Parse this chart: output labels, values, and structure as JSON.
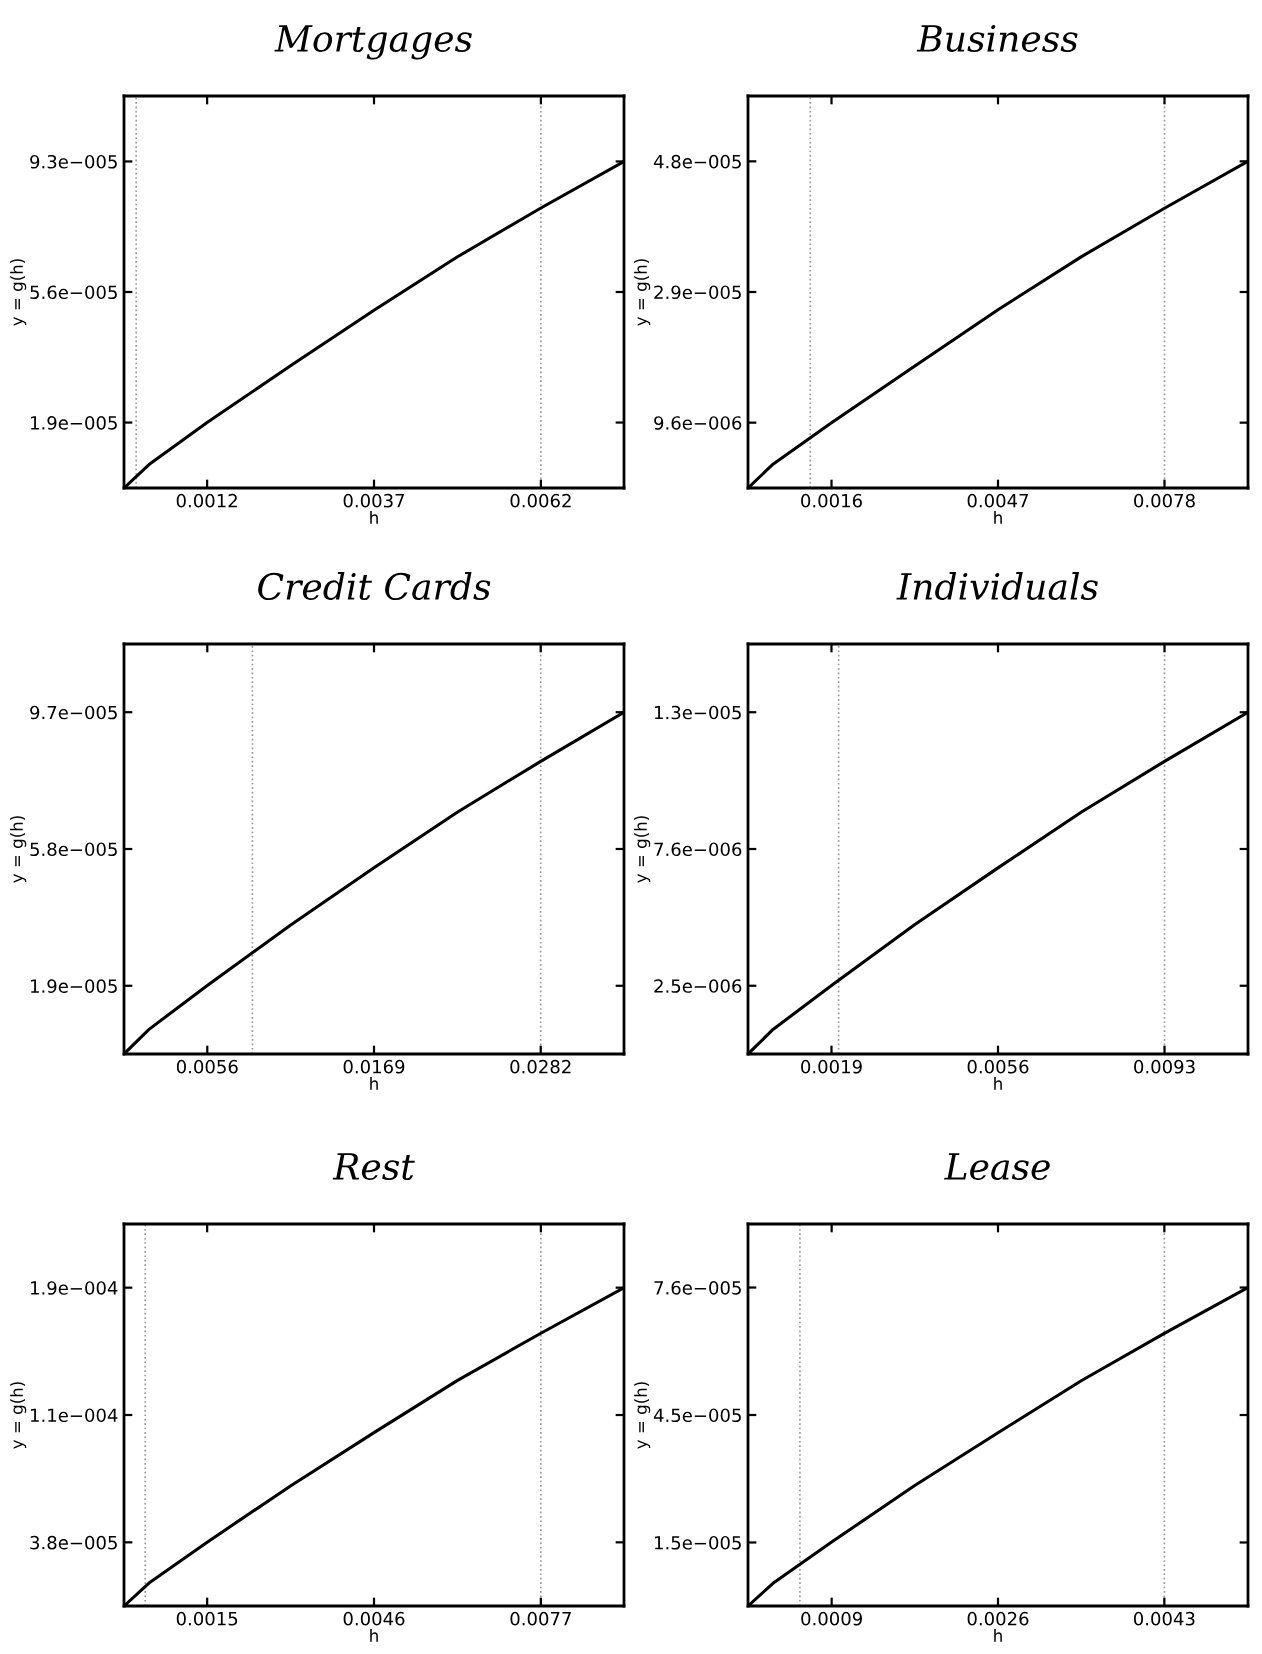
{
  "chart_data": [
    {
      "type": "line",
      "title": "Mortgages",
      "xlabel": "h",
      "ylabel": "y = g(h)",
      "x": [
        0,
        0.00037,
        0.00123,
        0.00247,
        0.0037,
        0.00493,
        0.00617,
        0.0074
      ],
      "series": [
        {
          "color": "#000000",
          "values": [
            0,
            6.7e-06,
            1.87e-05,
            3.5e-05,
            5.08e-05,
            6.6e-05,
            8e-05,
            9.33e-05
          ]
        }
      ],
      "xlim": [
        0,
        0.0074
      ],
      "ylim": [
        0,
        0.000112
      ],
      "xticks": [
        {
          "value": 0.00123,
          "label": "0.0012"
        },
        {
          "value": 0.0037,
          "label": "0.0037"
        },
        {
          "value": 0.00617,
          "label": "0.0062"
        }
      ],
      "yticks": [
        {
          "value": 1.87e-05,
          "label": "1.9e−005"
        },
        {
          "value": 5.6e-05,
          "label": "5.6e−005"
        },
        {
          "value": 9.33e-05,
          "label": "9.3e−005"
        }
      ],
      "ref_lines": [
        {
          "axis": "x",
          "value": 0.00018,
          "color": "#999999",
          "line_style": "dotted"
        },
        {
          "axis": "x",
          "value": 0.00617,
          "color": "#999999",
          "line_style": "dotted"
        }
      ]
    },
    {
      "type": "line",
      "title": "Business",
      "xlabel": "h",
      "ylabel": "y = g(h)",
      "x": [
        0,
        0.00047,
        0.00157,
        0.00313,
        0.0047,
        0.00627,
        0.00783,
        0.0094
      ],
      "series": [
        {
          "color": "#000000",
          "values": [
            0,
            3.5e-06,
            9.6e-06,
            1.79e-05,
            2.62e-05,
            3.4e-05,
            4.11e-05,
            4.8e-05
          ]
        }
      ],
      "xlim": [
        0,
        0.0094
      ],
      "ylim": [
        0,
        5.76e-05
      ],
      "xticks": [
        {
          "value": 0.00157,
          "label": "0.0016"
        },
        {
          "value": 0.0047,
          "label": "0.0047"
        },
        {
          "value": 0.00783,
          "label": "0.0078"
        }
      ],
      "yticks": [
        {
          "value": 9.6e-06,
          "label": "9.6e−006"
        },
        {
          "value": 2.88e-05,
          "label": "2.9e−005"
        },
        {
          "value": 4.8e-05,
          "label": "4.8e−005"
        }
      ],
      "ref_lines": [
        {
          "axis": "x",
          "value": 0.00117,
          "color": "#999999",
          "line_style": "dotted"
        },
        {
          "axis": "x",
          "value": 0.00783,
          "color": "#999999",
          "line_style": "dotted"
        }
      ]
    },
    {
      "type": "line",
      "title": "Credit Cards",
      "xlabel": "h",
      "ylabel": "y = g(h)",
      "x": [
        0,
        0.00169,
        0.00563,
        0.01127,
        0.0169,
        0.02253,
        0.02817,
        0.0338
      ],
      "series": [
        {
          "color": "#000000",
          "values": [
            0,
            6.96e-06,
            1.94e-05,
            3.65e-05,
            5.27e-05,
            6.84e-05,
            8.28e-05,
            9.67e-05
          ]
        }
      ],
      "xlim": [
        0,
        0.0338
      ],
      "ylim": [
        0,
        0.000116
      ],
      "xticks": [
        {
          "value": 0.00563,
          "label": "0.0056"
        },
        {
          "value": 0.0169,
          "label": "0.0169"
        },
        {
          "value": 0.02817,
          "label": "0.0282"
        }
      ],
      "yticks": [
        {
          "value": 1.93e-05,
          "label": "1.9e−005"
        },
        {
          "value": 5.8e-05,
          "label": "5.8e−005"
        },
        {
          "value": 9.67e-05,
          "label": "9.7e−005"
        }
      ],
      "ref_lines": [
        {
          "axis": "x",
          "value": 0.00868,
          "color": "#999999",
          "line_style": "dotted"
        },
        {
          "axis": "x",
          "value": 0.02817,
          "color": "#999999",
          "line_style": "dotted"
        }
      ]
    },
    {
      "type": "line",
      "title": "Individuals",
      "xlabel": "h",
      "ylabel": "y = g(h)",
      "x": [
        0,
        0.00056,
        0.00187,
        0.00373,
        0.0056,
        0.00747,
        0.00933,
        0.0112
      ],
      "series": [
        {
          "color": "#000000",
          "values": [
            0,
            9.1e-07,
            2.54e-06,
            4.79e-06,
            6.9e-06,
            8.97e-06,
            1.085e-05,
            1.267e-05
          ]
        }
      ],
      "xlim": [
        0,
        0.0112
      ],
      "ylim": [
        0,
        1.52e-05
      ],
      "xticks": [
        {
          "value": 0.00187,
          "label": "0.0019"
        },
        {
          "value": 0.0056,
          "label": "0.0056"
        },
        {
          "value": 0.00933,
          "label": "0.0093"
        }
      ],
      "yticks": [
        {
          "value": 2.53e-06,
          "label": "2.5e−006"
        },
        {
          "value": 7.6e-06,
          "label": "7.6e−006"
        },
        {
          "value": 1.267e-05,
          "label": "1.3e−005"
        }
      ],
      "ref_lines": [
        {
          "axis": "x",
          "value": 0.00203,
          "color": "#999999",
          "line_style": "dotted"
        },
        {
          "axis": "x",
          "value": 0.00933,
          "color": "#999999",
          "line_style": "dotted"
        }
      ]
    },
    {
      "type": "line",
      "title": "Rest",
      "xlabel": "h",
      "ylabel": "y = g(h)",
      "x": [
        0,
        0.00046,
        0.00153,
        0.00307,
        0.0046,
        0.00613,
        0.00767,
        0.0092
      ],
      "series": [
        {
          "color": "#000000",
          "values": [
            0,
            1.37e-05,
            3.81e-05,
            7.18e-05,
            0.0001035,
            0.0001345,
            0.0001628,
            0.00019
          ]
        }
      ],
      "xlim": [
        0,
        0.0092
      ],
      "ylim": [
        0,
        0.000228
      ],
      "xticks": [
        {
          "value": 0.00153,
          "label": "0.0015"
        },
        {
          "value": 0.0046,
          "label": "0.0046"
        },
        {
          "value": 0.00767,
          "label": "0.0077"
        }
      ],
      "yticks": [
        {
          "value": 3.8e-05,
          "label": "3.8e−005"
        },
        {
          "value": 0.000114,
          "label": "1.1e−004"
        },
        {
          "value": 0.00019,
          "label": "1.9e−004"
        }
      ],
      "ref_lines": [
        {
          "axis": "x",
          "value": 0.00039,
          "color": "#999999",
          "line_style": "dotted"
        },
        {
          "axis": "x",
          "value": 0.00767,
          "color": "#999999",
          "line_style": "dotted"
        }
      ]
    },
    {
      "type": "line",
      "title": "Lease",
      "xlabel": "h",
      "ylabel": "y = g(h)",
      "x": [
        0,
        0.00026,
        0.00087,
        0.00173,
        0.0026,
        0.00347,
        0.00433,
        0.0052
      ],
      "series": [
        {
          "color": "#000000",
          "values": [
            0,
            5.4e-06,
            1.52e-05,
            2.86e-05,
            4.12e-05,
            5.36e-05,
            6.48e-05,
            7.57e-05
          ]
        }
      ],
      "xlim": [
        0,
        0.0052
      ],
      "ylim": [
        0,
        9.08e-05
      ],
      "xticks": [
        {
          "value": 0.00087,
          "label": "0.0009"
        },
        {
          "value": 0.0026,
          "label": "0.0026"
        },
        {
          "value": 0.00433,
          "label": "0.0043"
        }
      ],
      "yticks": [
        {
          "value": 1.51e-05,
          "label": "1.5e−005"
        },
        {
          "value": 4.54e-05,
          "label": "4.5e−005"
        },
        {
          "value": 7.57e-05,
          "label": "7.6e−005"
        }
      ],
      "ref_lines": [
        {
          "axis": "x",
          "value": 0.00054,
          "color": "#999999",
          "line_style": "dotted"
        },
        {
          "axis": "x",
          "value": 0.00433,
          "color": "#999999",
          "line_style": "dotted"
        }
      ]
    }
  ]
}
